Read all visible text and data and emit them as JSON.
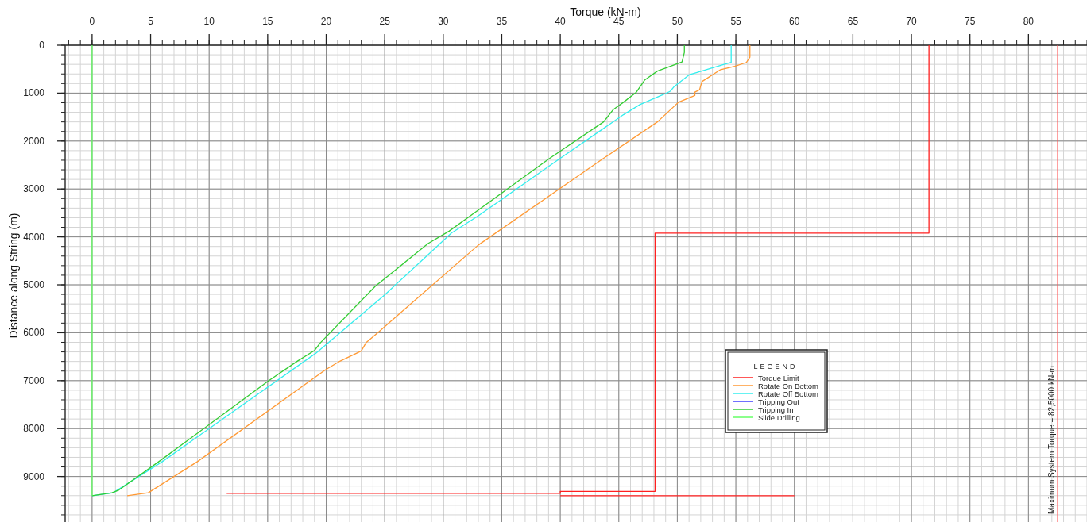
{
  "chart_data": {
    "type": "line",
    "xlabel": "Torque (kN-m)",
    "ylabel": "Distance along String (m)",
    "legend_title": "LEGEND",
    "xlim": [
      -2.3,
      85
    ],
    "ylim": [
      9950,
      0
    ],
    "xticks": [
      0,
      5,
      10,
      15,
      20,
      25,
      30,
      35,
      40,
      45,
      50,
      55,
      60,
      65,
      70,
      75,
      80
    ],
    "yticks": [
      0,
      1000,
      2000,
      3000,
      4000,
      5000,
      6000,
      7000,
      8000,
      9000
    ],
    "grid": true,
    "legend": "right",
    "line_style": "solid",
    "ref_lines": [
      {
        "axis": "x",
        "value": 82.5,
        "label": "Maximum System Torque = 82,5000 kN-m",
        "color": "#ff5a5a"
      }
    ],
    "series": [
      {
        "name": "Torque Limit",
        "color": "#ff2020",
        "x": [
          71.5,
          71.5,
          48.1,
          48.1,
          40,
          40,
          11.5,
          null,
          40,
          60
        ],
        "values": [
          0,
          3920,
          3920,
          9310,
          9310,
          9350,
          9350,
          null,
          9400,
          9400
        ]
      },
      {
        "name": "Rotate On Bottom",
        "color": "#ff9933",
        "x": [
          3.0,
          4.8,
          9.0,
          19.9,
          21.2,
          23.0,
          23.4,
          24.5,
          33.0,
          43.7,
          48.3,
          50.1,
          51.5,
          51.5,
          51.9,
          52.1,
          53.7,
          54.9,
          55.9,
          56.2,
          56.2
        ],
        "values": [
          9400,
          9340,
          8690,
          6780,
          6590,
          6380,
          6210,
          5980,
          4170,
          2360,
          1600,
          1190,
          1050,
          980,
          930,
          760,
          510,
          440,
          360,
          250,
          0
        ]
      },
      {
        "name": "Rotate Off Bottom",
        "color": "#33eeee",
        "x": [
          0,
          1.8,
          6.0,
          19.1,
          25.0,
          30.7,
          33.0,
          40.0,
          45.4,
          46.8,
          48.8,
          49.4,
          49.7,
          51.0,
          54.0,
          54.6,
          54.6
        ],
        "values": [
          9400,
          9340,
          8690,
          6430,
          5210,
          3920,
          3560,
          2360,
          1450,
          1240,
          1030,
          960,
          870,
          620,
          400,
          360,
          0
        ]
      },
      {
        "name": "Tripping Out",
        "color": "#4040ff",
        "x": [
          null,
          null
        ],
        "values": [
          null,
          null
        ]
      },
      {
        "name": "Tripping In",
        "color": "#33cc33",
        "x": [
          0,
          1.7,
          2.3,
          5.7,
          15.1,
          17.5,
          19.0,
          19.5,
          24.2,
          28.7,
          30.5,
          33.0,
          39.1,
          43.7,
          44.5,
          45.4,
          46.5,
          47.2,
          48.3,
          50.4,
          50.6,
          50.6
        ],
        "values": [
          9400,
          9340,
          9280,
          8690,
          7000,
          6600,
          6370,
          6210,
          5030,
          4140,
          3880,
          3440,
          2360,
          1600,
          1350,
          1190,
          980,
          730,
          540,
          350,
          150,
          0
        ]
      },
      {
        "name": "Slide Drilling",
        "color": "#66ff66",
        "x": [
          0,
          0
        ],
        "values": [
          0,
          9400
        ]
      }
    ]
  }
}
